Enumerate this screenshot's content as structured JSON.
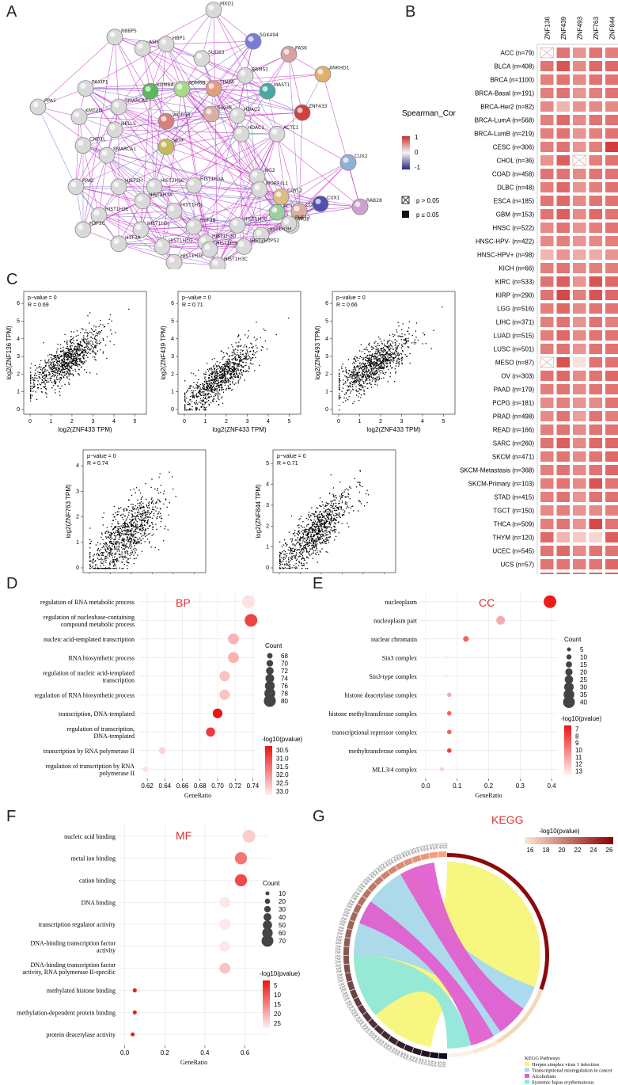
{
  "panels": {
    "A": "A",
    "B": "B",
    "C": "C",
    "D": "D",
    "E": "E",
    "F": "F",
    "G": "G"
  },
  "network": {
    "nodes": [
      {
        "name": "MXD1",
        "color": "#d9d9d9"
      },
      {
        "name": "RBBP5",
        "color": "#d9d9d9"
      },
      {
        "name": "ASH2L",
        "color": "#d9d9d9"
      },
      {
        "name": "HBP1",
        "color": "#d9d9d9"
      },
      {
        "name": "SGK494",
        "color": "#7b7bd6"
      },
      {
        "name": "SUDS3",
        "color": "#d9d9d9"
      },
      {
        "name": "PASK",
        "color": "#d9a0a0"
      },
      {
        "name": "ANKHD1",
        "color": "#e0b070"
      },
      {
        "name": "PAXIP1",
        "color": "#d9d9d9"
      },
      {
        "name": "BRMS1",
        "color": "#d9d9d9"
      },
      {
        "name": "MAST1",
        "color": "#4aa8a0"
      },
      {
        "name": "PPA1",
        "color": "#d9d9d9"
      },
      {
        "name": "KDM6A",
        "color": "#5cb85c"
      },
      {
        "name": "KDM6B",
        "color": "#a8d98a"
      },
      {
        "name": "SIN3A",
        "color": "#e0a080"
      },
      {
        "name": "SMARCA5",
        "color": "#d9d9d9"
      },
      {
        "name": "KMT2D",
        "color": "#d9d9d9"
      },
      {
        "name": "WDR5B",
        "color": "#d88080"
      },
      {
        "name": "SIN3B",
        "color": "#d9b0a0"
      },
      {
        "name": "HDAC2",
        "color": "#d9d9d9"
      },
      {
        "name": "ZNF433",
        "color": "#d04040"
      },
      {
        "name": "HELLS",
        "color": "#d9d9d9"
      },
      {
        "name": "SMARCA1",
        "color": "#d9d9d9"
      },
      {
        "name": "HDAC1",
        "color": "#d9d9d9"
      },
      {
        "name": "ACTC1",
        "color": "#d9d9d9"
      },
      {
        "name": "CHD1L",
        "color": "#d9d9d9"
      },
      {
        "name": "SPTF",
        "color": "#c8b860"
      },
      {
        "name": "CUX2",
        "color": "#8fb0d8"
      },
      {
        "name": "HIST2H3C",
        "color": "#d9d9d9"
      },
      {
        "name": "HIST1H3A",
        "color": "#d9d9d9"
      },
      {
        "name": "ING2",
        "color": "#d9d9d9"
      },
      {
        "name": "MORF4L1",
        "color": "#d9d9d9"
      },
      {
        "name": "HIST2H3A",
        "color": "#d9d9d9"
      },
      {
        "name": "HIST1H3J",
        "color": "#d9d9d9"
      },
      {
        "name": "ACTA2",
        "color": "#9ad0a0"
      },
      {
        "name": "COYL",
        "color": "#d9b0a0"
      },
      {
        "name": "HIST2H",
        "color": "#d9d9d9"
      },
      {
        "name": "PPA2",
        "color": "#d9d9d9"
      },
      {
        "name": "COYL2",
        "color": "#d9c080"
      },
      {
        "name": "ING1",
        "color": "#d9d9d9"
      },
      {
        "name": "CUX1",
        "color": "#5050b0"
      },
      {
        "name": "RAB28",
        "color": "#d0a0d0"
      },
      {
        "name": "HIST1H3E",
        "color": "#d9d9d9"
      },
      {
        "name": "HIST1H3J",
        "color": "#d9d9d9"
      },
      {
        "name": "H3F3B",
        "color": "#d9d9d9"
      },
      {
        "name": "HIST1H3B",
        "color": "#d9d9d9"
      },
      {
        "name": "PHF12",
        "color": "#d9d9d9"
      },
      {
        "name": "H3F3C",
        "color": "#d9d9d9"
      },
      {
        "name": "HIST1H3H",
        "color": "#d9d9d9"
      },
      {
        "name": "HIST1H3D",
        "color": "#d9d9d9"
      },
      {
        "name": "H3F3A",
        "color": "#d9d9d9"
      },
      {
        "name": "HIST1H3G",
        "color": "#d9d9d9"
      },
      {
        "name": "HIST2H3PS2",
        "color": "#d9d9d9"
      },
      {
        "name": "HIST1H3F",
        "color": "#d9d9d9"
      },
      {
        "name": "HIST1H3C",
        "color": "#d9d9d9"
      },
      {
        "name": "HIST1H3I",
        "color": "#d9d9d9"
      }
    ]
  },
  "heatmap": {
    "legend_title": "Spearman_Cor",
    "legend_ticks": [
      "1",
      "0",
      "-1"
    ],
    "sig_legend": [
      "p > 0.05",
      "p ≤ 0.05"
    ],
    "genes": [
      "ZNF136",
      "ZNF439",
      "ZNF493",
      "ZNF763",
      "ZNF844"
    ],
    "cancers": [
      "ACC (n=79)",
      "BLCA (n=408)",
      "BRCA (n=1100)",
      "BRCA-Basal (n=191)",
      "BRCA-Her2 (n=82)",
      "BRCA-LumA (n=568)",
      "BRCA-LumB (n=219)",
      "CESC (n=306)",
      "CHOL (n=36)",
      "COAD (n=458)",
      "DLBC (n=48)",
      "ESCA (n=185)",
      "GBM (n=153)",
      "HNSC (n=522)",
      "HNSC-HPV- (n=422)",
      "HNSC-HPV+ (n=98)",
      "KICH (n=66)",
      "KIRC (n=533)",
      "KIRP (n=290)",
      "LGG (n=516)",
      "LIHC (n=371)",
      "LUAD (n=515)",
      "LUSC (n=501)",
      "MESO (n=87)",
      "OV (n=303)",
      "PAAD (n=179)",
      "PCPG (n=181)",
      "PRAD (n=498)",
      "READ (n=166)",
      "SARC (n=260)",
      "SKCM (n=471)",
      "SKCM-Metastasis (n=368)",
      "SKCM-Primary (n=103)",
      "STAD (n=415)",
      "TGCT (n=150)",
      "THCA (n=509)",
      "THYM (n=120)",
      "UCEC (n=545)",
      "UCS (n=57)",
      "UVM (n=80)"
    ],
    "values": [
      [
        0,
        0.6,
        0.45,
        0.6,
        0.55
      ],
      [
        0.6,
        0.75,
        0.5,
        0.65,
        0.65
      ],
      [
        0.55,
        0.6,
        0.5,
        0.6,
        0.6
      ],
      [
        0.55,
        0.6,
        0.45,
        0.55,
        0.6
      ],
      [
        0.5,
        0.3,
        0.45,
        0.5,
        0.5
      ],
      [
        0.55,
        0.65,
        0.5,
        0.6,
        0.6
      ],
      [
        0.55,
        0.6,
        0.45,
        0.55,
        0.6
      ],
      [
        0.55,
        0.6,
        0.45,
        0.55,
        0.85
      ],
      [
        0.45,
        0.7,
        0,
        0.55,
        0.6
      ],
      [
        0.6,
        0.6,
        0.5,
        0.6,
        0.6
      ],
      [
        0.55,
        0.65,
        0.45,
        0.55,
        0.6
      ],
      [
        0.6,
        0.65,
        0.5,
        0.6,
        0.6
      ],
      [
        0.6,
        0.7,
        0.5,
        0.65,
        0.6
      ],
      [
        0.5,
        0.6,
        0.45,
        0.55,
        0.6
      ],
      [
        0.5,
        0.55,
        0.45,
        0.5,
        0.55
      ],
      [
        0.3,
        0.45,
        0.35,
        0.35,
        0.45
      ],
      [
        0.55,
        0.6,
        0.5,
        0.55,
        0.55
      ],
      [
        0.6,
        0.7,
        0.45,
        0.75,
        0.65
      ],
      [
        0.6,
        0.8,
        0.55,
        0.75,
        0.65
      ],
      [
        0.55,
        0.65,
        0.5,
        0.6,
        0.6
      ],
      [
        0.55,
        0.6,
        0.45,
        0.6,
        0.55
      ],
      [
        0.55,
        0.65,
        0.5,
        0.6,
        0.6
      ],
      [
        0.55,
        0.6,
        0.45,
        0.6,
        0.6
      ],
      [
        0,
        0.75,
        0.1,
        0.6,
        0.6
      ],
      [
        0.6,
        0.65,
        0.5,
        0.6,
        0.65
      ],
      [
        0.55,
        0.6,
        0.5,
        0.6,
        0.6
      ],
      [
        0.5,
        0.55,
        0.45,
        0.5,
        0.6
      ],
      [
        0.5,
        0.6,
        0.4,
        0.6,
        0.55
      ],
      [
        0.55,
        0.6,
        0.5,
        0.6,
        0.6
      ],
      [
        0.6,
        0.7,
        0.5,
        0.65,
        0.65
      ],
      [
        0.55,
        0.6,
        0.5,
        0.6,
        0.65
      ],
      [
        0.55,
        0.6,
        0.5,
        0.6,
        0.65
      ],
      [
        0.55,
        0.6,
        0.5,
        0.75,
        0.6
      ],
      [
        0.55,
        0.6,
        0.45,
        0.6,
        0.6
      ],
      [
        0.5,
        0.55,
        0.45,
        0.5,
        0.55
      ],
      [
        0.55,
        0.6,
        0.45,
        0.8,
        0.6
      ],
      [
        0.65,
        0.3,
        0.2,
        0.15,
        0.7
      ],
      [
        0.6,
        0.65,
        0.5,
        0.6,
        0.6
      ],
      [
        0.6,
        0.6,
        0.55,
        0.6,
        0.65
      ],
      [
        0.65,
        0.7,
        0.6,
        0.7,
        0.7
      ]
    ],
    "nonsig": [
      [
        0,
        0
      ],
      [
        8,
        2
      ],
      [
        23,
        0
      ]
    ]
  },
  "scatter": [
    {
      "ylabel": "log2(ZNF136 TPM)",
      "xlabel": "log2(ZNF433 TPM)",
      "pvalue": "p−value = 0",
      "r": "R = 0.69",
      "yticks": [
        "0",
        "1",
        "2",
        "3",
        "4",
        "5",
        "6"
      ],
      "xticks": [
        "0",
        "1",
        "2",
        "3",
        "4",
        "5"
      ],
      "ymax": 6.5,
      "slope": 0.75,
      "intercept": 1.5
    },
    {
      "ylabel": "log2(ZNF439 TPM)",
      "xlabel": "log2(ZNF433 TPM)",
      "pvalue": "p−value = 0",
      "r": "R = 0.71",
      "yticks": [
        "0",
        "1",
        "2",
        "3",
        "4",
        "5",
        "6"
      ],
      "xticks": [
        "0",
        "1",
        "2",
        "3",
        "4",
        "5"
      ],
      "ymax": 6.5,
      "slope": 0.9,
      "intercept": 0.3
    },
    {
      "ylabel": "log2(ZNF493 TPM)",
      "xlabel": "log2(ZNF433 TPM)",
      "pvalue": "p−value = 0",
      "r": "R = 0.66",
      "yticks": [
        "0",
        "1",
        "2",
        "3",
        "4",
        "5",
        "6"
      ],
      "xticks": [
        "0",
        "1",
        "2",
        "3",
        "4",
        "5"
      ],
      "ymax": 6.5,
      "slope": 0.8,
      "intercept": 1.2
    },
    {
      "ylabel": "log2(ZNF763 TPM)",
      "xlabel": "log2(ZNF433 TPM)",
      "pvalue": "p−value = 0",
      "r": "R = 0.74",
      "yticks": [
        "0",
        "1",
        "2",
        "3",
        "4"
      ],
      "xticks": [
        "0",
        "1",
        "2",
        "3",
        "4",
        "5"
      ],
      "ymax": 4.5,
      "slope": 0.65,
      "intercept": 0.2
    },
    {
      "ylabel": "log2(ZNF844 TPM)",
      "xlabel": "log2(ZNF433 TPM)",
      "pvalue": "p−value = 0",
      "r": "R = 0.71",
      "yticks": [
        "0",
        "1",
        "2",
        "3",
        "4",
        "5"
      ],
      "xticks": [
        "0",
        "1",
        "2",
        "3",
        "4",
        "5"
      ],
      "ymax": 5.5,
      "slope": 0.85,
      "intercept": 0.3
    }
  ],
  "bp": {
    "tag": "BP",
    "xlabel": "GeneRatio",
    "terms": [
      "regulation of RNA metabolic process",
      "regulation of nucleobase-containing compound metabolic process",
      "nucleic acid-templated transcription",
      "RNA biosynthetic process",
      "regulation of nucleic acid-templated transcription",
      "regulation of RNA biosynthetic process",
      "transcription, DNA-templated",
      "regulation of transcription, DNA-templated",
      "transcription by RNA polymerase II",
      "regulation of transcription by RNA polymerase II"
    ],
    "x": [
      0.735,
      0.738,
      0.718,
      0.718,
      0.708,
      0.708,
      0.7,
      0.692,
      0.637,
      0.618
    ],
    "count": [
      80,
      80,
      77,
      77,
      76,
      76,
      75,
      74,
      70,
      68
    ],
    "logp": [
      33.0,
      30.9,
      32.4,
      32.4,
      32.6,
      32.6,
      30.3,
      30.8,
      32.8,
      33.0
    ],
    "xlim": [
      0.61,
      0.745
    ],
    "xticks": [
      "0.62",
      "0.64",
      "0.66",
      "0.68",
      "0.70",
      "0.72",
      "0.74"
    ],
    "xvals": [
      0.62,
      0.64,
      0.66,
      0.68,
      0.7,
      0.72,
      0.74
    ],
    "count_title": "Count",
    "count_ticks": [
      "68",
      "70",
      "72",
      "74",
      "76",
      "78",
      "80"
    ],
    "color_title": "-log10(pvalue)",
    "color_ticks": [
      "30.5",
      "31.0",
      "31.5",
      "32.0",
      "32.5",
      "33.0"
    ],
    "cmin": 30.3,
    "cmax": 33.2
  },
  "cc": {
    "tag": "CC",
    "xlabel": "GeneRatio",
    "terms": [
      "nucleoplasm",
      "nucleoplasm part",
      "nuclear chromatin",
      "Sin3 complex",
      "Sin3-type complex",
      "histone deacetylase complex",
      "histone methyltransferase complex",
      "transcriptional repressor complex",
      "methyltransferase complex",
      "MLL3/4 complex"
    ],
    "x": [
      0.395,
      0.238,
      0.128,
      0.065,
      0.065,
      0.075,
      0.075,
      0.075,
      0.075,
      0.052
    ],
    "count": [
      40,
      24,
      12,
      6,
      6,
      7,
      7,
      7,
      7,
      5
    ],
    "logp": [
      7,
      11,
      9,
      13,
      13,
      11,
      9,
      9,
      8,
      12
    ],
    "xlim": [
      -0.02,
      0.42
    ],
    "xticks": [
      "0.0",
      "0.1",
      "0.2",
      "0.3",
      "0.4"
    ],
    "xvals": [
      0,
      0.1,
      0.2,
      0.3,
      0.4
    ],
    "count_title": "Count",
    "count_ticks": [
      "5",
      "10",
      "15",
      "20",
      "25",
      "30",
      "35",
      "40"
    ],
    "color_title": "-log10(pvalue)",
    "color_ticks": [
      "7",
      "8",
      "9",
      "10",
      "11",
      "12",
      "13"
    ],
    "cmin": 6.8,
    "cmax": 13
  },
  "mf": {
    "tag": "MF",
    "xlabel": "GeneRatio",
    "terms": [
      "nucleic acid binding",
      "metal ion binding",
      "cation binding",
      "DNA binding",
      "transcription regulator activity",
      "DNA-binding transcription factor activity",
      "DNA-binding transcription factor activity, RNA polymerase II-specific",
      "methylated histone binding",
      "methylation-dependent protein binding",
      "protein deacetylase activity"
    ],
    "x": [
      0.62,
      0.58,
      0.58,
      0.5,
      0.5,
      0.5,
      0.5,
      0.05,
      0.05,
      0.04
    ],
    "count": [
      72,
      68,
      68,
      58,
      58,
      58,
      58,
      5,
      5,
      4
    ],
    "logp": [
      25,
      15,
      10,
      28,
      28,
      28,
      24,
      5,
      5,
      5
    ],
    "xlim": [
      -0.03,
      0.72
    ],
    "xticks": [
      "0.0",
      "0.2",
      "0.4",
      "0.6"
    ],
    "xvals": [
      0,
      0.2,
      0.4,
      0.6
    ],
    "count_title": "Count",
    "count_ticks": [
      "10",
      "20",
      "30",
      "40",
      "50",
      "60",
      "70"
    ],
    "color_title": "-log10(pvalue)",
    "color_ticks": [
      "5",
      "10",
      "15",
      "20",
      "25"
    ],
    "cmin": 4,
    "cmax": 29
  },
  "kegg": {
    "tag": "KEGG",
    "color_title": "-log10(pvalue)",
    "color_ticks": [
      "16",
      "18",
      "20",
      "22",
      "24",
      "26"
    ],
    "legend_title": "KEGG Pathways",
    "pathways": [
      {
        "name": "Herpes simplex virus 1 infection",
        "color": "#f5f57a"
      },
      {
        "name": "Transcriptional misregulation in cancer",
        "color": "#a8d8f0"
      },
      {
        "name": "Alcoholism",
        "color": "#e060d0"
      },
      {
        "name": "Systemic lupus erythematosus",
        "color": "#90e8d8"
      }
    ]
  }
}
